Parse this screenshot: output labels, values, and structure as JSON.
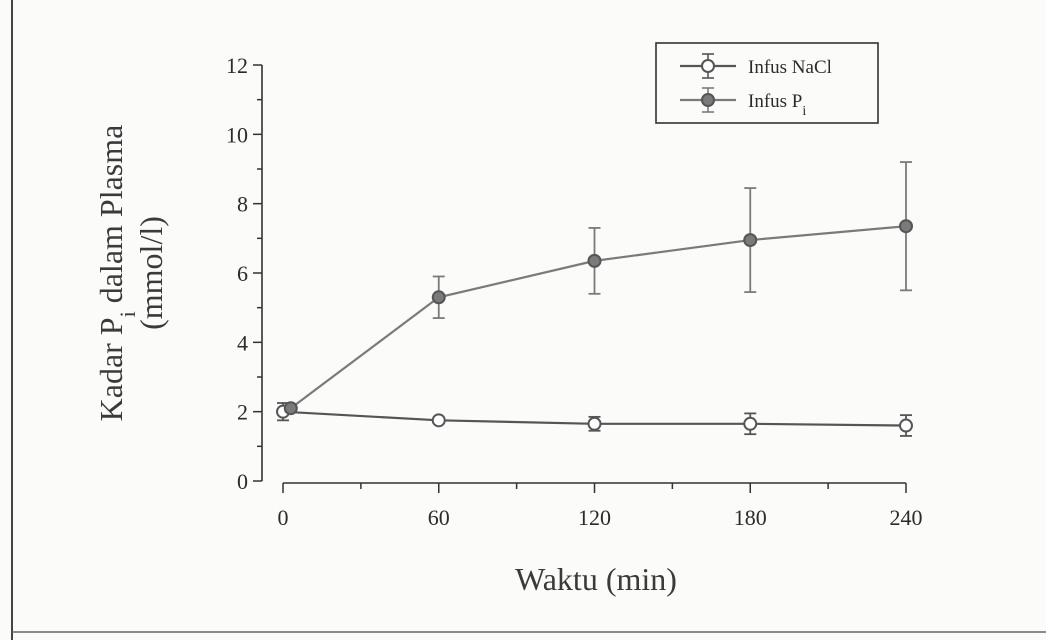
{
  "chart_data": {
    "type": "line",
    "xlabel": "Waktu (min)",
    "ylabel_line1": "Kadar P",
    "ylabel_sub": "i",
    "ylabel_line1_rest": " dalam Plasma",
    "ylabel_line2": "(mmol/l)",
    "x_ticks": [
      0,
      60,
      120,
      180,
      240
    ],
    "x_tick_labels": [
      "0",
      "60",
      "120",
      "180",
      "240"
    ],
    "y_ticks": [
      0,
      2,
      4,
      6,
      8,
      10,
      12
    ],
    "y_tick_labels": [
      "0",
      "2",
      "4",
      "6",
      "8",
      "10",
      "12"
    ],
    "xlim": [
      0,
      240
    ],
    "ylim": [
      0,
      12
    ],
    "grid": false,
    "legend_position": "top-right",
    "series": [
      {
        "name": "Infus NaCl",
        "marker": "open-circle",
        "color": "#555555",
        "x": [
          0,
          60,
          120,
          180,
          240
        ],
        "y": [
          2.0,
          1.75,
          1.65,
          1.65,
          1.6
        ],
        "err": [
          0.25,
          0.05,
          0.2,
          0.3,
          0.3
        ]
      },
      {
        "name": "Infus P",
        "name_sub": "i",
        "marker": "filled-circle",
        "color": "#7a7a7a",
        "x": [
          3,
          60,
          120,
          180,
          240
        ],
        "y": [
          2.1,
          5.3,
          6.35,
          6.95,
          7.35
        ],
        "err": [
          0.1,
          0.6,
          0.95,
          1.5,
          1.85
        ]
      }
    ]
  }
}
